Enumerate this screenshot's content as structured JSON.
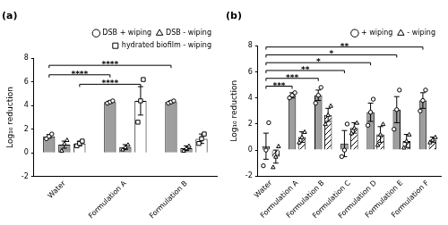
{
  "chart_data": [
    {
      "type": "bar",
      "title": "(a)",
      "y_label": "Log₁₀ reduction",
      "categories": [
        "Water",
        "Formulation A",
        "Formulation B"
      ],
      "series": [
        {
          "name": "DSB + wiping",
          "color": "#9e9e9e",
          "marker": "circle",
          "values": [
            1.4,
            4.3,
            4.3
          ],
          "errors": [
            0.15,
            0.1,
            0.1
          ],
          "points": [
            [
              1.2,
              1.4,
              1.6
            ],
            [
              4.2,
              4.3,
              4.4
            ],
            [
              4.2,
              4.3,
              4.4
            ]
          ]
        },
        {
          "name": "DSB - wiping",
          "color": "#9e9e9e",
          "marker": "triangle",
          "values": [
            0.7,
            0.5,
            0.4
          ],
          "errors": [
            0.3,
            0.2,
            0.2
          ],
          "points": [
            [
              0.2,
              0.8,
              1.1
            ],
            [
              0.3,
              0.5,
              0.7
            ],
            [
              0.2,
              0.4,
              0.6
            ]
          ]
        },
        {
          "name": "hydrated biofilm - wiping",
          "color": "#ffffff",
          "marker": "square",
          "values": [
            0.8,
            4.4,
            1.2
          ],
          "errors": [
            0.2,
            1.2,
            0.4
          ],
          "points": [
            [
              0.6,
              0.8,
              1.0
            ],
            [
              2.6,
              4.4,
              6.2
            ],
            [
              0.8,
              1.2,
              1.6
            ]
          ]
        }
      ],
      "ylim": [
        -2,
        8
      ],
      "yticks": [
        -2,
        0,
        2,
        4,
        6,
        8
      ],
      "grid": false,
      "legend": "top-right",
      "annotations": [
        {
          "from": "Water",
          "to": "Formulation B",
          "series": "DSB + wiping",
          "y": 7.4,
          "label": "****"
        },
        {
          "from": "Water",
          "to": "Formulation A",
          "series": "DSB + wiping",
          "y": 6.6,
          "label": "****"
        },
        {
          "from": "Water",
          "to": "Formulation A",
          "series": "hydrated biofilm - wiping",
          "y": 5.8,
          "label": "****"
        }
      ]
    },
    {
      "type": "bar",
      "title": "(b)",
      "y_label": "Log₁₀ reduction",
      "categories": [
        "Water",
        "Formulation A",
        "Formulation B",
        "Formulation C",
        "Formulation D",
        "Formulation E",
        "Formulation F"
      ],
      "series": [
        {
          "name": "+ wiping",
          "color": "#9e9e9e",
          "marker": "circle",
          "values": [
            0.3,
            4.2,
            4.2,
            0.5,
            2.9,
            3.1,
            3.8
          ],
          "errors": [
            1.0,
            0.2,
            0.4,
            1.0,
            0.7,
            1.0,
            0.6
          ],
          "points": [
            [
              -1.2,
              0.0,
              2.1
            ],
            [
              4.0,
              4.2,
              4.4
            ],
            [
              3.6,
              4.2,
              4.8
            ],
            [
              -0.5,
              0.0,
              2.0
            ],
            [
              1.9,
              2.9,
              3.9
            ],
            [
              1.6,
              3.1,
              4.6
            ],
            [
              3.0,
              3.8,
              4.6
            ]
          ]
        },
        {
          "name": "- wiping",
          "color": "#ffffff",
          "marker": "triangle",
          "line_style": "hatched",
          "values": [
            -0.5,
            1.0,
            2.7,
            1.7,
            1.2,
            0.7,
            0.8
          ],
          "errors": [
            0.5,
            0.4,
            0.5,
            0.4,
            0.6,
            0.5,
            0.2
          ],
          "points": [
            [
              -1.3,
              -0.5,
              0.3
            ],
            [
              0.6,
              1.0,
              1.4
            ],
            [
              2.0,
              2.7,
              3.4
            ],
            [
              1.3,
              1.7,
              2.1
            ],
            [
              0.4,
              1.2,
              2.0
            ],
            [
              0.2,
              0.7,
              1.2
            ],
            [
              0.6,
              0.8,
              1.0
            ]
          ]
        }
      ],
      "ylim": [
        -2,
        8
      ],
      "yticks": [
        -2,
        0,
        2,
        4,
        6,
        8
      ],
      "grid": false,
      "legend": "top-right",
      "annotations": [
        {
          "from": "Water",
          "to": "Formulation F",
          "series": "+ wiping",
          "y": 7.9,
          "label": "**"
        },
        {
          "from": "Water",
          "to": "Formulation E",
          "series": "+ wiping",
          "y": 7.3,
          "label": "*"
        },
        {
          "from": "Water",
          "to": "Formulation D",
          "series": "+ wiping",
          "y": 6.7,
          "label": "*"
        },
        {
          "from": "Water",
          "to": "Formulation C",
          "series": "+ wiping",
          "y": 6.1,
          "label": "**"
        },
        {
          "from": "Water",
          "to": "Formulation B",
          "series": "+ wiping",
          "y": 5.5,
          "label": "***"
        },
        {
          "from": "Water",
          "to": "Formulation A",
          "series": "+ wiping",
          "y": 4.9,
          "label": "***"
        }
      ]
    }
  ]
}
